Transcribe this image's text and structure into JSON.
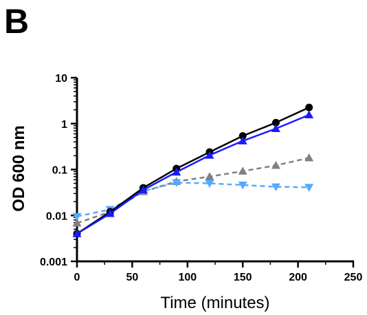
{
  "panel_label": "B",
  "chart_data": {
    "type": "line",
    "title": "",
    "xlabel": "Time (minutes)",
    "ylabel": "OD 600 nm",
    "xlim": [
      0,
      250
    ],
    "ylim": [
      0.001,
      10
    ],
    "yscale": "log",
    "grid": false,
    "x_ticks": [
      0,
      50,
      100,
      150,
      200,
      250
    ],
    "x_tick_labels": [
      "0",
      "50",
      "100",
      "150",
      "200",
      "250"
    ],
    "y_ticks": [
      0.001,
      0.01,
      0.1,
      1,
      10
    ],
    "y_tick_labels": [
      "0.001",
      "0.01",
      "0.1",
      "1",
      "10"
    ],
    "x": [
      0,
      30,
      60,
      90,
      120,
      150,
      180,
      210
    ],
    "series": [
      {
        "color": "#000000",
        "marker": "circle",
        "line_style": "solid",
        "x": [
          0,
          30,
          60,
          90,
          120,
          150,
          180,
          210
        ],
        "values": [
          0.004,
          0.012,
          0.04,
          0.105,
          0.24,
          0.54,
          1.05,
          2.25
        ]
      },
      {
        "color": "#1a1aff",
        "marker": "triangle-up",
        "line_style": "solid",
        "x": [
          0,
          30,
          60,
          90,
          120,
          150,
          180,
          210
        ],
        "values": [
          0.004,
          0.011,
          0.036,
          0.088,
          0.205,
          0.42,
          0.78,
          1.55
        ]
      },
      {
        "color": "#808080",
        "marker": "triangle-up",
        "line_style": "dashed",
        "x": [
          0,
          30,
          60,
          90,
          120,
          150,
          180,
          210
        ],
        "values": [
          0.0068,
          0.012,
          0.033,
          0.055,
          0.07,
          0.092,
          0.123,
          0.18
        ]
      },
      {
        "color": "#55aaff",
        "marker": "triangle-down",
        "line_style": "dashed",
        "x": [
          0,
          30,
          60,
          90,
          120,
          150,
          180,
          210
        ],
        "values": [
          0.0095,
          0.0135,
          0.034,
          0.052,
          0.05,
          0.046,
          0.042,
          0.041
        ]
      }
    ]
  }
}
